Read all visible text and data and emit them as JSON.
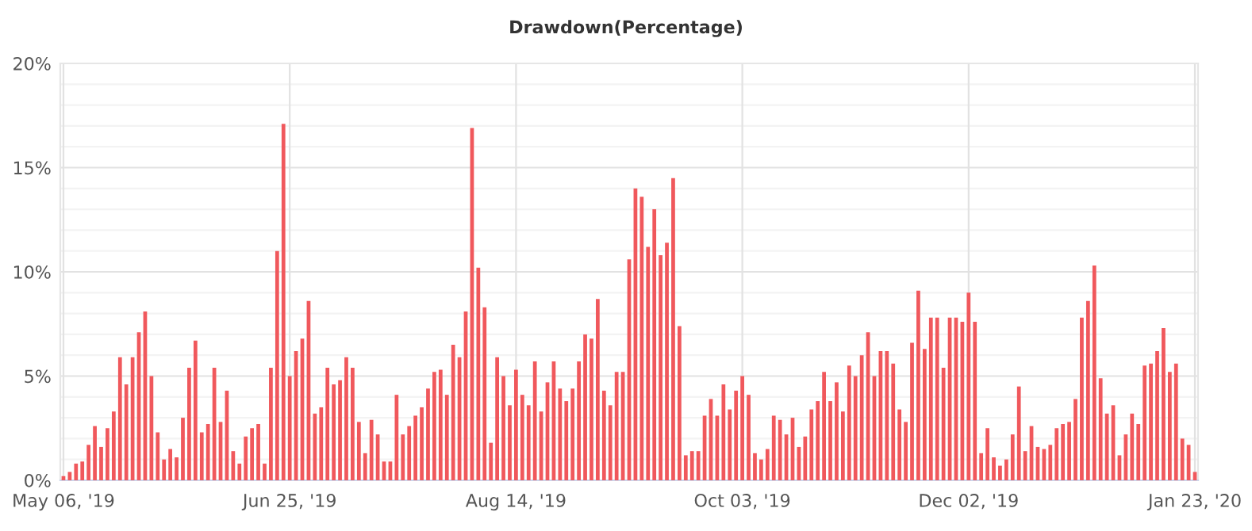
{
  "chart_data": {
    "type": "bar",
    "title": "Drawdown(Percentage)",
    "categories": [
      "May 06, '19",
      null,
      null,
      null,
      null,
      null,
      null,
      null,
      null,
      null,
      null,
      null,
      null,
      null,
      null,
      null,
      null,
      null,
      null,
      null,
      null,
      null,
      null,
      null,
      null,
      null,
      null,
      null,
      null,
      null,
      null,
      null,
      null,
      null,
      null,
      null,
      "Jun 25, '19",
      null,
      null,
      null,
      null,
      null,
      null,
      null,
      null,
      null,
      null,
      null,
      null,
      null,
      null,
      null,
      null,
      null,
      null,
      null,
      null,
      null,
      null,
      null,
      null,
      null,
      null,
      null,
      null,
      null,
      null,
      null,
      null,
      null,
      null,
      null,
      "Aug 14, '19",
      null,
      null,
      null,
      null,
      null,
      null,
      null,
      null,
      null,
      null,
      null,
      null,
      null,
      null,
      null,
      null,
      null,
      null,
      null,
      null,
      null,
      null,
      null,
      null,
      null,
      null,
      null,
      null,
      null,
      null,
      null,
      null,
      null,
      null,
      null,
      "Oct 03, '19",
      null,
      null,
      null,
      null,
      null,
      null,
      null,
      null,
      null,
      null,
      null,
      null,
      null,
      null,
      null,
      null,
      null,
      null,
      null,
      null,
      null,
      null,
      null,
      null,
      null,
      null,
      null,
      null,
      null,
      null,
      null,
      null,
      null,
      null,
      null,
      "Dec 02, '19",
      null,
      null,
      null,
      null,
      null,
      null,
      null,
      null,
      null,
      null,
      null,
      null,
      null,
      null,
      null,
      null,
      null,
      null,
      null,
      null,
      null,
      null,
      null,
      null,
      null,
      null,
      null,
      null,
      null,
      null,
      null,
      null,
      null,
      null,
      null,
      "Jan 23, '20"
    ],
    "values": [
      0.2,
      0.4,
      0.8,
      0.9,
      1.7,
      2.6,
      1.6,
      2.5,
      3.3,
      5.9,
      4.6,
      5.9,
      7.1,
      8.1,
      5.0,
      2.3,
      1.0,
      1.5,
      1.1,
      3.0,
      5.4,
      6.7,
      2.3,
      2.7,
      5.4,
      2.8,
      4.3,
      1.4,
      0.8,
      2.1,
      2.5,
      2.7,
      0.8,
      5.4,
      11.0,
      17.1,
      5.0,
      6.2,
      6.8,
      8.6,
      3.2,
      3.5,
      5.4,
      4.6,
      4.8,
      5.9,
      5.4,
      2.8,
      1.3,
      2.9,
      2.2,
      0.9,
      0.9,
      4.1,
      2.2,
      2.6,
      3.1,
      3.5,
      4.4,
      5.2,
      5.3,
      4.1,
      6.5,
      5.9,
      8.1,
      16.9,
      10.2,
      8.3,
      1.8,
      5.9,
      5.0,
      3.6,
      5.3,
      4.1,
      3.6,
      5.7,
      3.3,
      4.7,
      5.7,
      4.4,
      3.8,
      4.4,
      5.7,
      7.0,
      6.8,
      8.7,
      4.3,
      3.6,
      5.2,
      5.2,
      10.6,
      14.0,
      13.6,
      11.2,
      13.0,
      10.8,
      11.4,
      14.5,
      7.4,
      1.2,
      1.4,
      1.4,
      3.1,
      3.9,
      3.1,
      4.6,
      3.4,
      4.3,
      5.0,
      4.1,
      1.3,
      1.0,
      1.5,
      3.1,
      2.9,
      2.2,
      3.0,
      1.6,
      2.1,
      3.4,
      3.8,
      5.2,
      3.8,
      4.7,
      3.3,
      5.5,
      5.0,
      6.0,
      7.1,
      5.0,
      6.2,
      6.2,
      5.6,
      3.4,
      2.8,
      6.6,
      9.1,
      6.3,
      7.8,
      7.8,
      5.4,
      7.8,
      7.8,
      7.6,
      9.0,
      7.6,
      1.3,
      2.5,
      1.1,
      0.7,
      1.0,
      2.2,
      4.5,
      1.4,
      2.6,
      1.6,
      1.5,
      1.7,
      2.5,
      2.7,
      2.8,
      3.9,
      7.8,
      8.6,
      10.3,
      4.9,
      3.2,
      3.6,
      1.2,
      2.2,
      3.2,
      2.7,
      5.5,
      5.6,
      6.2,
      7.3,
      5.2,
      5.6,
      2.0,
      1.7,
      0.4
    ],
    "color": "#f0585c",
    "ylim": [
      0,
      20
    ],
    "yticks": [
      {
        "value": 0,
        "label": "0%"
      },
      {
        "value": 1,
        "label": null
      },
      {
        "value": 2,
        "label": null
      },
      {
        "value": 3,
        "label": null
      },
      {
        "value": 4,
        "label": null
      },
      {
        "value": 5,
        "label": "5%"
      },
      {
        "value": 6,
        "label": null
      },
      {
        "value": 7,
        "label": null
      },
      {
        "value": 8,
        "label": null
      },
      {
        "value": 9,
        "label": null
      },
      {
        "value": 10,
        "label": "10%"
      },
      {
        "value": 11,
        "label": null
      },
      {
        "value": 12,
        "label": null
      },
      {
        "value": 13,
        "label": null
      },
      {
        "value": 14,
        "label": null
      },
      {
        "value": 15,
        "label": "15%"
      },
      {
        "value": 16,
        "label": null
      },
      {
        "value": 17,
        "label": null
      },
      {
        "value": 18,
        "label": null
      },
      {
        "value": 19,
        "label": null
      },
      {
        "value": 20,
        "label": "20%"
      }
    ],
    "grid": true
  }
}
